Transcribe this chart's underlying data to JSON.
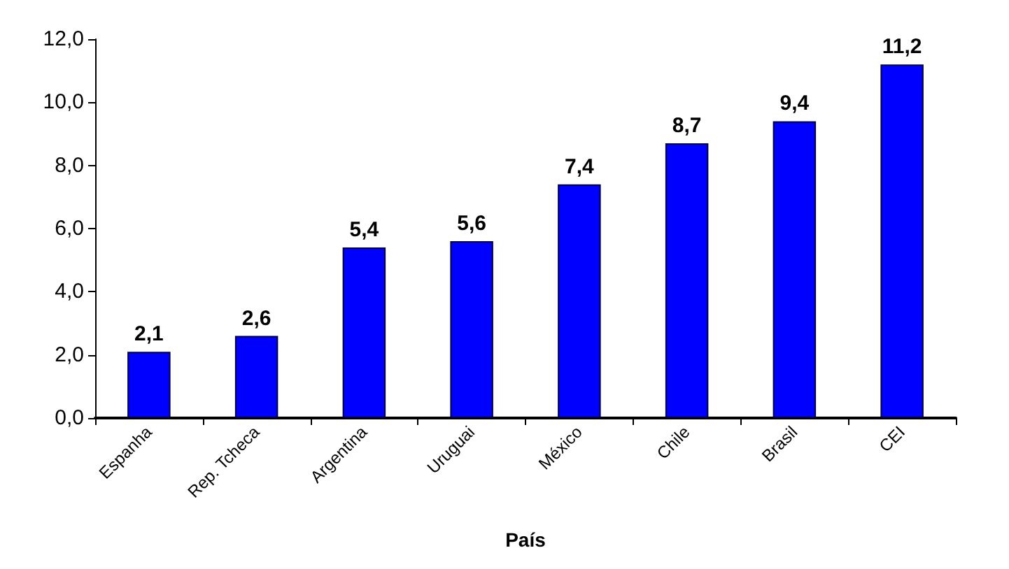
{
  "chart_data": {
    "type": "bar",
    "xlabel": "País",
    "categories": [
      "Espanha",
      "Rep. Tcheca",
      "Argentina",
      "Uruguai",
      "México",
      "Chile",
      "Brasil",
      "CEI"
    ],
    "values": [
      2.1,
      2.6,
      5.4,
      5.6,
      7.4,
      8.7,
      9.4,
      11.2
    ],
    "value_labels": [
      "2,1",
      "2,6",
      "5,4",
      "5,6",
      "7,4",
      "8,7",
      "9,4",
      "11,2"
    ],
    "color": "#0000ff",
    "ylim": [
      0,
      12
    ],
    "yticks": [
      {
        "value": 0,
        "label": "0,0"
      },
      {
        "value": 2,
        "label": "2,0"
      },
      {
        "value": 4,
        "label": "4,0"
      },
      {
        "value": 6,
        "label": "6,0"
      },
      {
        "value": 8,
        "label": "8,0"
      },
      {
        "value": 10,
        "label": "10,0"
      },
      {
        "value": 12,
        "label": "12,0"
      }
    ],
    "grid": false
  }
}
